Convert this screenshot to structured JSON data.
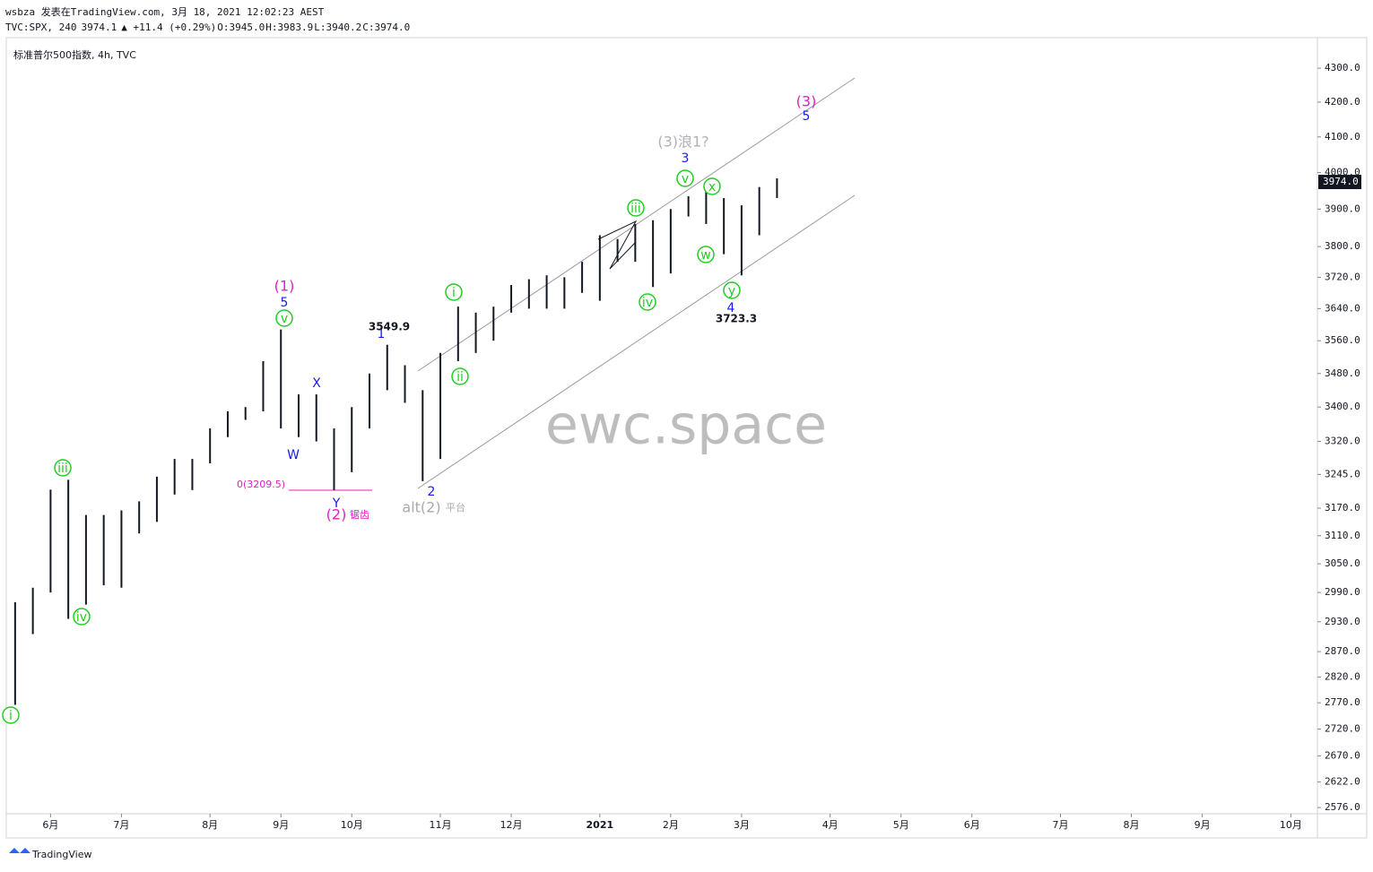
{
  "header": {
    "line1": "wsbza 发表在TradingView.com, 3月 18, 2021 12:02:23 AEST",
    "symbol": "TVC:SPX, 240",
    "last": "3974.1",
    "change": "▲ +11.4 (+0.29%)",
    "ohlc": [
      [
        "O:",
        "3945.0"
      ],
      [
        "H:",
        "3983.9"
      ],
      [
        "L:",
        "3940.2"
      ],
      [
        "C:",
        "3974.0"
      ]
    ]
  },
  "chart_data": {
    "type": "ohlc",
    "title": "标准普尔500指数, 4h, TVC",
    "color": "#131722",
    "log": true,
    "categories": [
      null,
      null,
      "6月",
      null,
      null,
      null,
      "7月",
      null,
      null,
      null,
      null,
      "8月",
      null,
      null,
      null,
      "9月",
      null,
      null,
      null,
      "10月",
      null,
      null,
      null,
      null,
      "11月",
      null,
      null,
      null,
      "12月",
      null,
      null,
      null,
      null,
      "2021",
      null,
      null,
      null,
      "2月",
      null,
      null,
      null,
      "3月",
      null,
      null,
      null,
      null,
      "4月",
      null,
      null,
      null,
      "5月",
      null,
      null,
      null,
      "6月",
      null,
      null,
      null,
      null,
      "7月",
      null,
      null,
      null,
      "8月",
      null,
      null,
      null,
      "9月",
      null,
      null,
      null,
      null,
      "10月",
      null
    ],
    "high": [
      2970,
      3000,
      3211,
      3233,
      3155,
      3155,
      3165,
      3185,
      3240,
      3280,
      3280,
      3350,
      3390,
      3400,
      3510,
      3588,
      3430,
      3430,
      3350,
      3400,
      3480,
      3550,
      3500,
      3440,
      3530,
      3645,
      3630,
      3645,
      3700,
      3715,
      3725,
      3720,
      3760,
      3830,
      3820,
      3860,
      3870,
      3900,
      3935,
      3960,
      3930,
      3910,
      3960,
      3984,
      null,
      null,
      null,
      null,
      null,
      null,
      null,
      null,
      null,
      null,
      null,
      null,
      null,
      null,
      null,
      null,
      null,
      null,
      null,
      null,
      null,
      null,
      null,
      null,
      null,
      null,
      null,
      null,
      null,
      null
    ],
    "low": [
      2766,
      2905,
      2990,
      2936,
      2965,
      3005,
      3000,
      3115,
      3140,
      3200,
      3210,
      3270,
      3330,
      3370,
      3390,
      3350,
      3330,
      3320,
      3210,
      3250,
      3350,
      3440,
      3410,
      3230,
      3280,
      3510,
      3530,
      3560,
      3630,
      3640,
      3640,
      3640,
      3680,
      3660,
      3760,
      3760,
      3695,
      3730,
      3880,
      3860,
      3780,
      3725,
      3830,
      3930,
      null,
      null,
      null,
      null,
      null,
      null,
      null,
      null,
      null,
      null,
      null,
      null,
      null,
      null,
      null,
      null,
      null,
      null,
      null,
      null,
      null,
      null,
      null,
      null,
      null,
      null,
      null,
      null,
      null,
      null
    ],
    "ylim": [
      2565,
      4392
    ],
    "yticks": [
      {
        "value": 4300,
        "label": "4300.0"
      },
      {
        "value": 4200,
        "label": "4200.0"
      },
      {
        "value": 4100,
        "label": "4100.0"
      },
      {
        "value": 4000,
        "label": "4000.0"
      },
      {
        "value": 3900,
        "label": "3900.0"
      },
      {
        "value": 3800,
        "label": "3800.0"
      },
      {
        "value": 3720,
        "label": "3720.0"
      },
      {
        "value": 3640,
        "label": "3640.0"
      },
      {
        "value": 3560,
        "label": "3560.0"
      },
      {
        "value": 3480,
        "label": "3480.0"
      },
      {
        "value": 3400,
        "label": "3400.0"
      },
      {
        "value": 3320,
        "label": "3320.0"
      },
      {
        "value": 3245,
        "label": "3245.0"
      },
      {
        "value": 3170,
        "label": "3170.0"
      },
      {
        "value": 3110,
        "label": "3110.0"
      },
      {
        "value": 3050,
        "label": "3050.0"
      },
      {
        "value": 2990,
        "label": "2990.0"
      },
      {
        "value": 2930,
        "label": "2930.0"
      },
      {
        "value": 2870,
        "label": "2870.0"
      },
      {
        "value": 2820,
        "label": "2820.0"
      },
      {
        "value": 2770,
        "label": "2770.0"
      },
      {
        "value": 2720,
        "label": "2720.0"
      },
      {
        "value": 2670,
        "label": "2670.0"
      },
      {
        "value": 2622,
        "label": "2622.0"
      },
      {
        "value": 2576,
        "label": "2576.0"
      }
    ],
    "last_price": {
      "value": 3974,
      "label": "3974.0"
    },
    "watermark": "ewc.space",
    "annotations": [
      {
        "text": "i",
        "color": "#22cc22",
        "circled": true
      },
      {
        "text": "iii",
        "color": "#22cc22",
        "circled": true
      },
      {
        "text": "iv",
        "color": "#22cc22",
        "circled": true
      },
      {
        "text": "(1)",
        "color": "#e020c0"
      },
      {
        "text": "5",
        "color": "#1a1aee"
      },
      {
        "text": "v",
        "color": "#22cc22",
        "circled": true
      },
      {
        "text": "X",
        "color": "#1a1aee"
      },
      {
        "text": "W",
        "color": "#1a1aee"
      },
      {
        "text": "Y",
        "color": "#1a1aee"
      },
      {
        "text": "(2)",
        "color": "#e020c0"
      },
      {
        "text": "锯齿",
        "color": "#e020c0"
      },
      {
        "text": "0(3209.5)",
        "color": "#e020c0"
      },
      {
        "text": "1",
        "color": "#1a1aee"
      },
      {
        "text": "3549.9",
        "color": "#131722"
      },
      {
        "text": "i",
        "color": "#22cc22",
        "circled": true
      },
      {
        "text": "ii",
        "color": "#22cc22",
        "circled": true
      },
      {
        "text": "2",
        "color": "#1a1aee"
      },
      {
        "text": "alt(2)",
        "color": "#aaaaaa"
      },
      {
        "text": "平台",
        "color": "#aaaaaa"
      },
      {
        "text": "iii",
        "color": "#22cc22",
        "circled": true
      },
      {
        "text": "iv",
        "color": "#22cc22",
        "circled": true
      },
      {
        "text": "(3)浪1?",
        "color": "#b0b0b8"
      },
      {
        "text": "3",
        "color": "#1a1aee"
      },
      {
        "text": "v",
        "color": "#22cc22",
        "circled": true
      },
      {
        "text": "x",
        "color": "#22cc22",
        "circled": true
      },
      {
        "text": "w",
        "color": "#22cc22",
        "circled": true
      },
      {
        "text": "y",
        "color": "#22cc22",
        "circled": true
      },
      {
        "text": "4",
        "color": "#1a1aee"
      },
      {
        "text": "3723.3",
        "color": "#131722"
      },
      {
        "text": "(3)",
        "color": "#e020c0"
      },
      {
        "text": "5",
        "color": "#1a1aee"
      }
    ]
  },
  "footer": {
    "brand": "TradingView"
  }
}
